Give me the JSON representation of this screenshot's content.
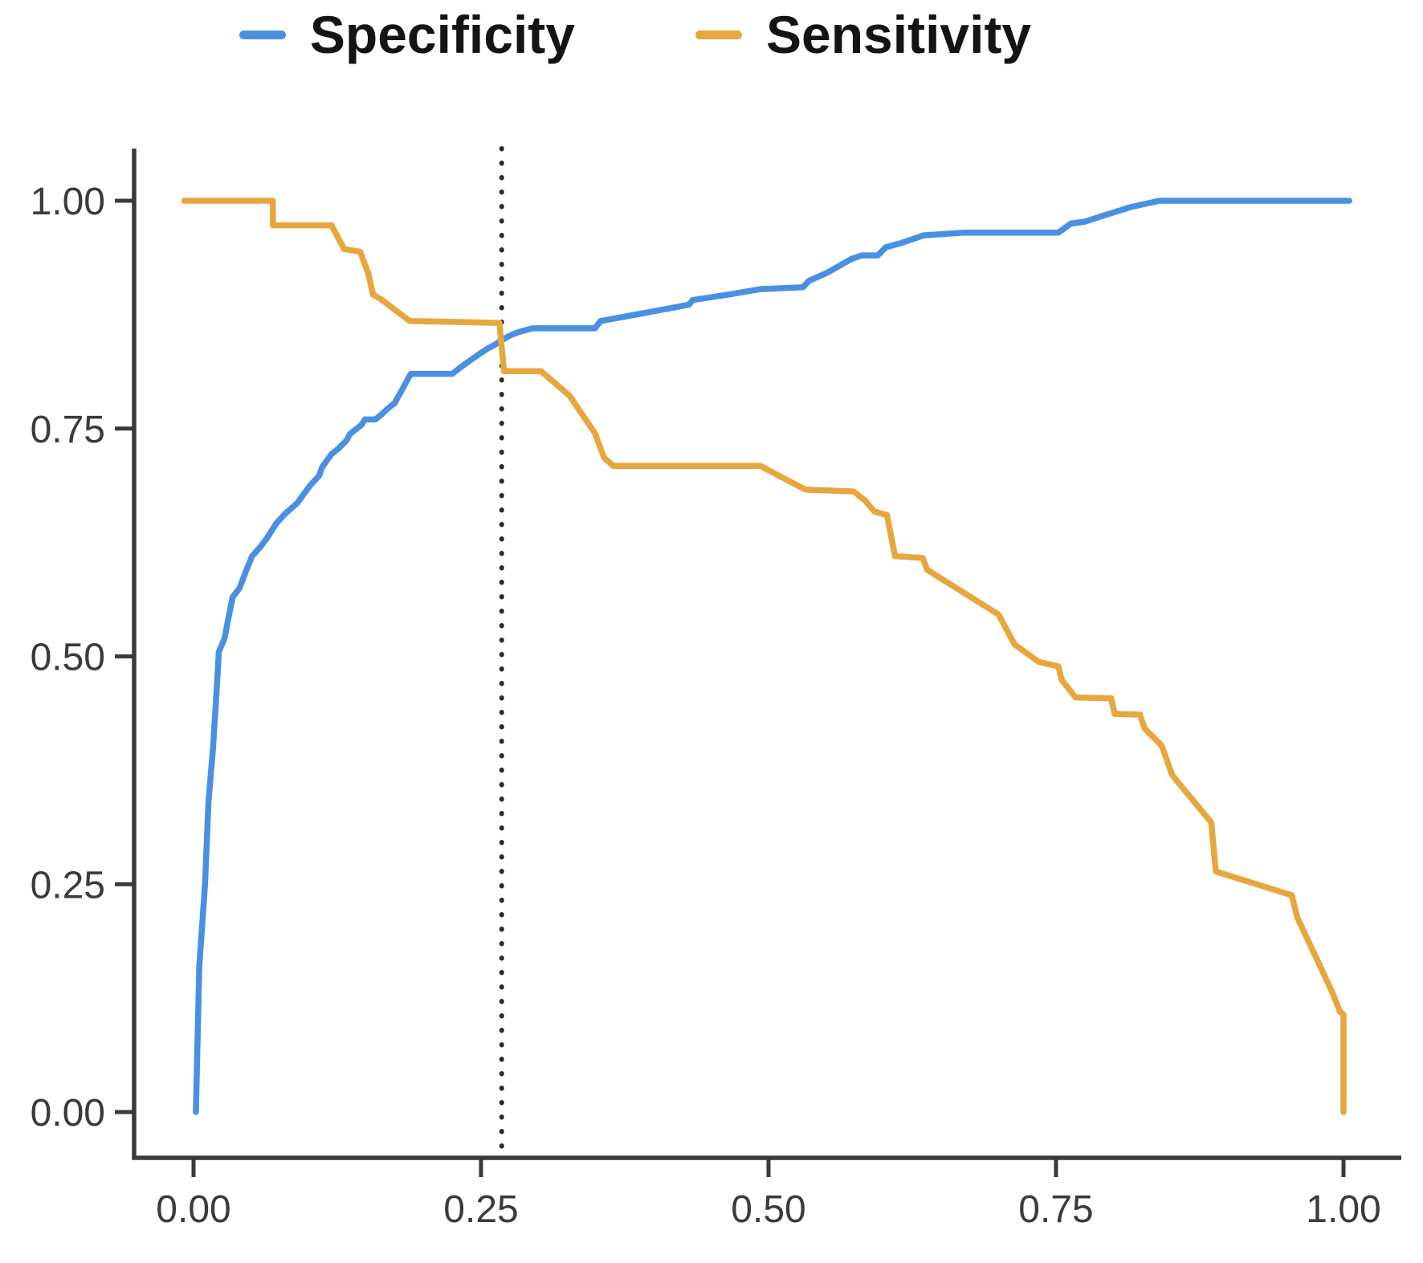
{
  "legend": {
    "items": [
      {
        "label": "Specificity",
        "color": "#4a90e2"
      },
      {
        "label": "Sensitivity",
        "color": "#e7a73e"
      }
    ]
  },
  "chart_data": {
    "type": "line",
    "title": "",
    "xlabel": "",
    "ylabel": "",
    "xlim": [
      0,
      1
    ],
    "ylim": [
      0,
      1
    ],
    "grid": false,
    "legend_position": "top-center",
    "x_axis": {
      "tick_values": [
        0,
        0.25,
        0.5,
        0.75,
        1
      ],
      "tick_labels": [
        "0.00",
        "0.25",
        "0.50",
        "0.75",
        "1.00"
      ]
    },
    "y_axis": {
      "tick_values": [
        0,
        0.25,
        0.5,
        0.75,
        1
      ],
      "tick_labels": [
        "0.00",
        "0.25",
        "0.50",
        "0.75",
        "1.00"
      ]
    },
    "threshold_line": {
      "x": 0.268,
      "style": "dotted-vertical",
      "color": "#2a2a2a"
    },
    "series": [
      {
        "name": "Specificity",
        "color": "#4a90e2",
        "points": [
          [
            0.002,
            0.0
          ],
          [
            0.005,
            0.16
          ],
          [
            0.01,
            0.25
          ],
          [
            0.013,
            0.34
          ],
          [
            0.017,
            0.4
          ],
          [
            0.02,
            0.46
          ],
          [
            0.022,
            0.505
          ],
          [
            0.027,
            0.52
          ],
          [
            0.03,
            0.54
          ],
          [
            0.034,
            0.565
          ],
          [
            0.04,
            0.575
          ],
          [
            0.046,
            0.595
          ],
          [
            0.051,
            0.61
          ],
          [
            0.058,
            0.62
          ],
          [
            0.064,
            0.63
          ],
          [
            0.072,
            0.646
          ],
          [
            0.08,
            0.657
          ],
          [
            0.09,
            0.668
          ],
          [
            0.101,
            0.687
          ],
          [
            0.109,
            0.698
          ],
          [
            0.112,
            0.708
          ],
          [
            0.12,
            0.722
          ],
          [
            0.126,
            0.728
          ],
          [
            0.133,
            0.737
          ],
          [
            0.136,
            0.744
          ],
          [
            0.146,
            0.754
          ],
          [
            0.149,
            0.76
          ],
          [
            0.158,
            0.76
          ],
          [
            0.163,
            0.765
          ],
          [
            0.169,
            0.772
          ],
          [
            0.175,
            0.778
          ],
          [
            0.177,
            0.783
          ],
          [
            0.182,
            0.794
          ],
          [
            0.184,
            0.799
          ],
          [
            0.189,
            0.81
          ],
          [
            0.225,
            0.81
          ],
          [
            0.233,
            0.818
          ],
          [
            0.242,
            0.826
          ],
          [
            0.25,
            0.833
          ],
          [
            0.256,
            0.838
          ],
          [
            0.262,
            0.842
          ],
          [
            0.268,
            0.847
          ],
          [
            0.275,
            0.852
          ],
          [
            0.283,
            0.856
          ],
          [
            0.295,
            0.86
          ],
          [
            0.349,
            0.86
          ],
          [
            0.354,
            0.868
          ],
          [
            0.38,
            0.874
          ],
          [
            0.41,
            0.881
          ],
          [
            0.431,
            0.886
          ],
          [
            0.434,
            0.891
          ],
          [
            0.465,
            0.897
          ],
          [
            0.493,
            0.903
          ],
          [
            0.53,
            0.905
          ],
          [
            0.535,
            0.912
          ],
          [
            0.551,
            0.921
          ],
          [
            0.572,
            0.936
          ],
          [
            0.581,
            0.94
          ],
          [
            0.595,
            0.94
          ],
          [
            0.602,
            0.949
          ],
          [
            0.614,
            0.953
          ],
          [
            0.635,
            0.962
          ],
          [
            0.67,
            0.965
          ],
          [
            0.752,
            0.965
          ],
          [
            0.763,
            0.975
          ],
          [
            0.775,
            0.977
          ],
          [
            0.792,
            0.984
          ],
          [
            0.815,
            0.993
          ],
          [
            0.84,
            1.0
          ],
          [
            1.005,
            1.0
          ]
        ]
      },
      {
        "name": "Sensitivity",
        "color": "#e7a73e",
        "points": [
          [
            -0.008,
            1.0
          ],
          [
            0.069,
            1.0
          ],
          [
            0.069,
            0.973
          ],
          [
            0.12,
            0.973
          ],
          [
            0.131,
            0.947
          ],
          [
            0.145,
            0.944
          ],
          [
            0.152,
            0.92
          ],
          [
            0.156,
            0.897
          ],
          [
            0.163,
            0.892
          ],
          [
            0.188,
            0.868
          ],
          [
            0.266,
            0.866
          ],
          [
            0.27,
            0.813
          ],
          [
            0.302,
            0.813
          ],
          [
            0.327,
            0.786
          ],
          [
            0.349,
            0.745
          ],
          [
            0.357,
            0.718
          ],
          [
            0.365,
            0.709
          ],
          [
            0.493,
            0.709
          ],
          [
            0.532,
            0.683
          ],
          [
            0.574,
            0.681
          ],
          [
            0.584,
            0.671
          ],
          [
            0.592,
            0.659
          ],
          [
            0.603,
            0.655
          ],
          [
            0.61,
            0.61
          ],
          [
            0.634,
            0.608
          ],
          [
            0.638,
            0.595
          ],
          [
            0.7,
            0.546
          ],
          [
            0.714,
            0.513
          ],
          [
            0.735,
            0.494
          ],
          [
            0.752,
            0.489
          ],
          [
            0.755,
            0.474
          ],
          [
            0.767,
            0.455
          ],
          [
            0.798,
            0.454
          ],
          [
            0.801,
            0.437
          ],
          [
            0.823,
            0.436
          ],
          [
            0.827,
            0.421
          ],
          [
            0.842,
            0.402
          ],
          [
            0.851,
            0.37
          ],
          [
            0.856,
            0.362
          ],
          [
            0.885,
            0.318
          ],
          [
            0.889,
            0.264
          ],
          [
            0.955,
            0.238
          ],
          [
            0.96,
            0.213
          ],
          [
            0.976,
            0.17
          ],
          [
            0.99,
            0.132
          ],
          [
            0.997,
            0.11
          ],
          [
            1.0,
            0.107
          ],
          [
            1.0,
            0.0
          ]
        ]
      }
    ]
  }
}
